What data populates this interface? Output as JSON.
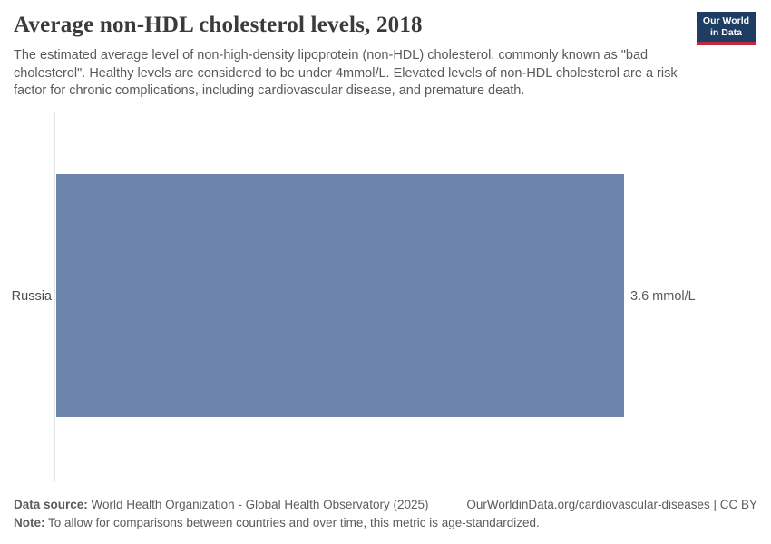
{
  "header": {
    "title": "Average non-HDL cholesterol levels, 2018",
    "subtitle": "The estimated average level of non-high-density lipoprotein (non-HDL) cholesterol, commonly known as \"bad cholesterol\". Healthy levels are considered to be under 4mmol/L. Elevated levels of non-HDL cholesterol are a risk factor for chronic complications, including cardiovascular disease, and premature death.",
    "logo": {
      "line1": "Our World",
      "line2": "in Data",
      "bg_color": "#1d3d63",
      "accent_color": "#c0293a"
    }
  },
  "chart_data": {
    "type": "bar",
    "orientation": "horizontal",
    "title": "Average non-HDL cholesterol levels, 2018",
    "unit": "mmol/L",
    "categories": [
      "Russia"
    ],
    "values": [
      3.6
    ],
    "value_labels": [
      "3.6 mmol/L"
    ],
    "xlim": [
      0,
      3.6
    ],
    "grid": false,
    "legend": false,
    "bar_color": "#6d85ad",
    "axis_color": "#e2e2e4"
  },
  "footer": {
    "data_source_label": "Data source:",
    "data_source": "World Health Organization - Global Health Observatory (2025)",
    "url": "OurWorldinData.org/cardiovascular-diseases | CC BY",
    "note_label": "Note:",
    "note": "To allow for comparisons between countries and over time, this metric is age-standardized."
  }
}
